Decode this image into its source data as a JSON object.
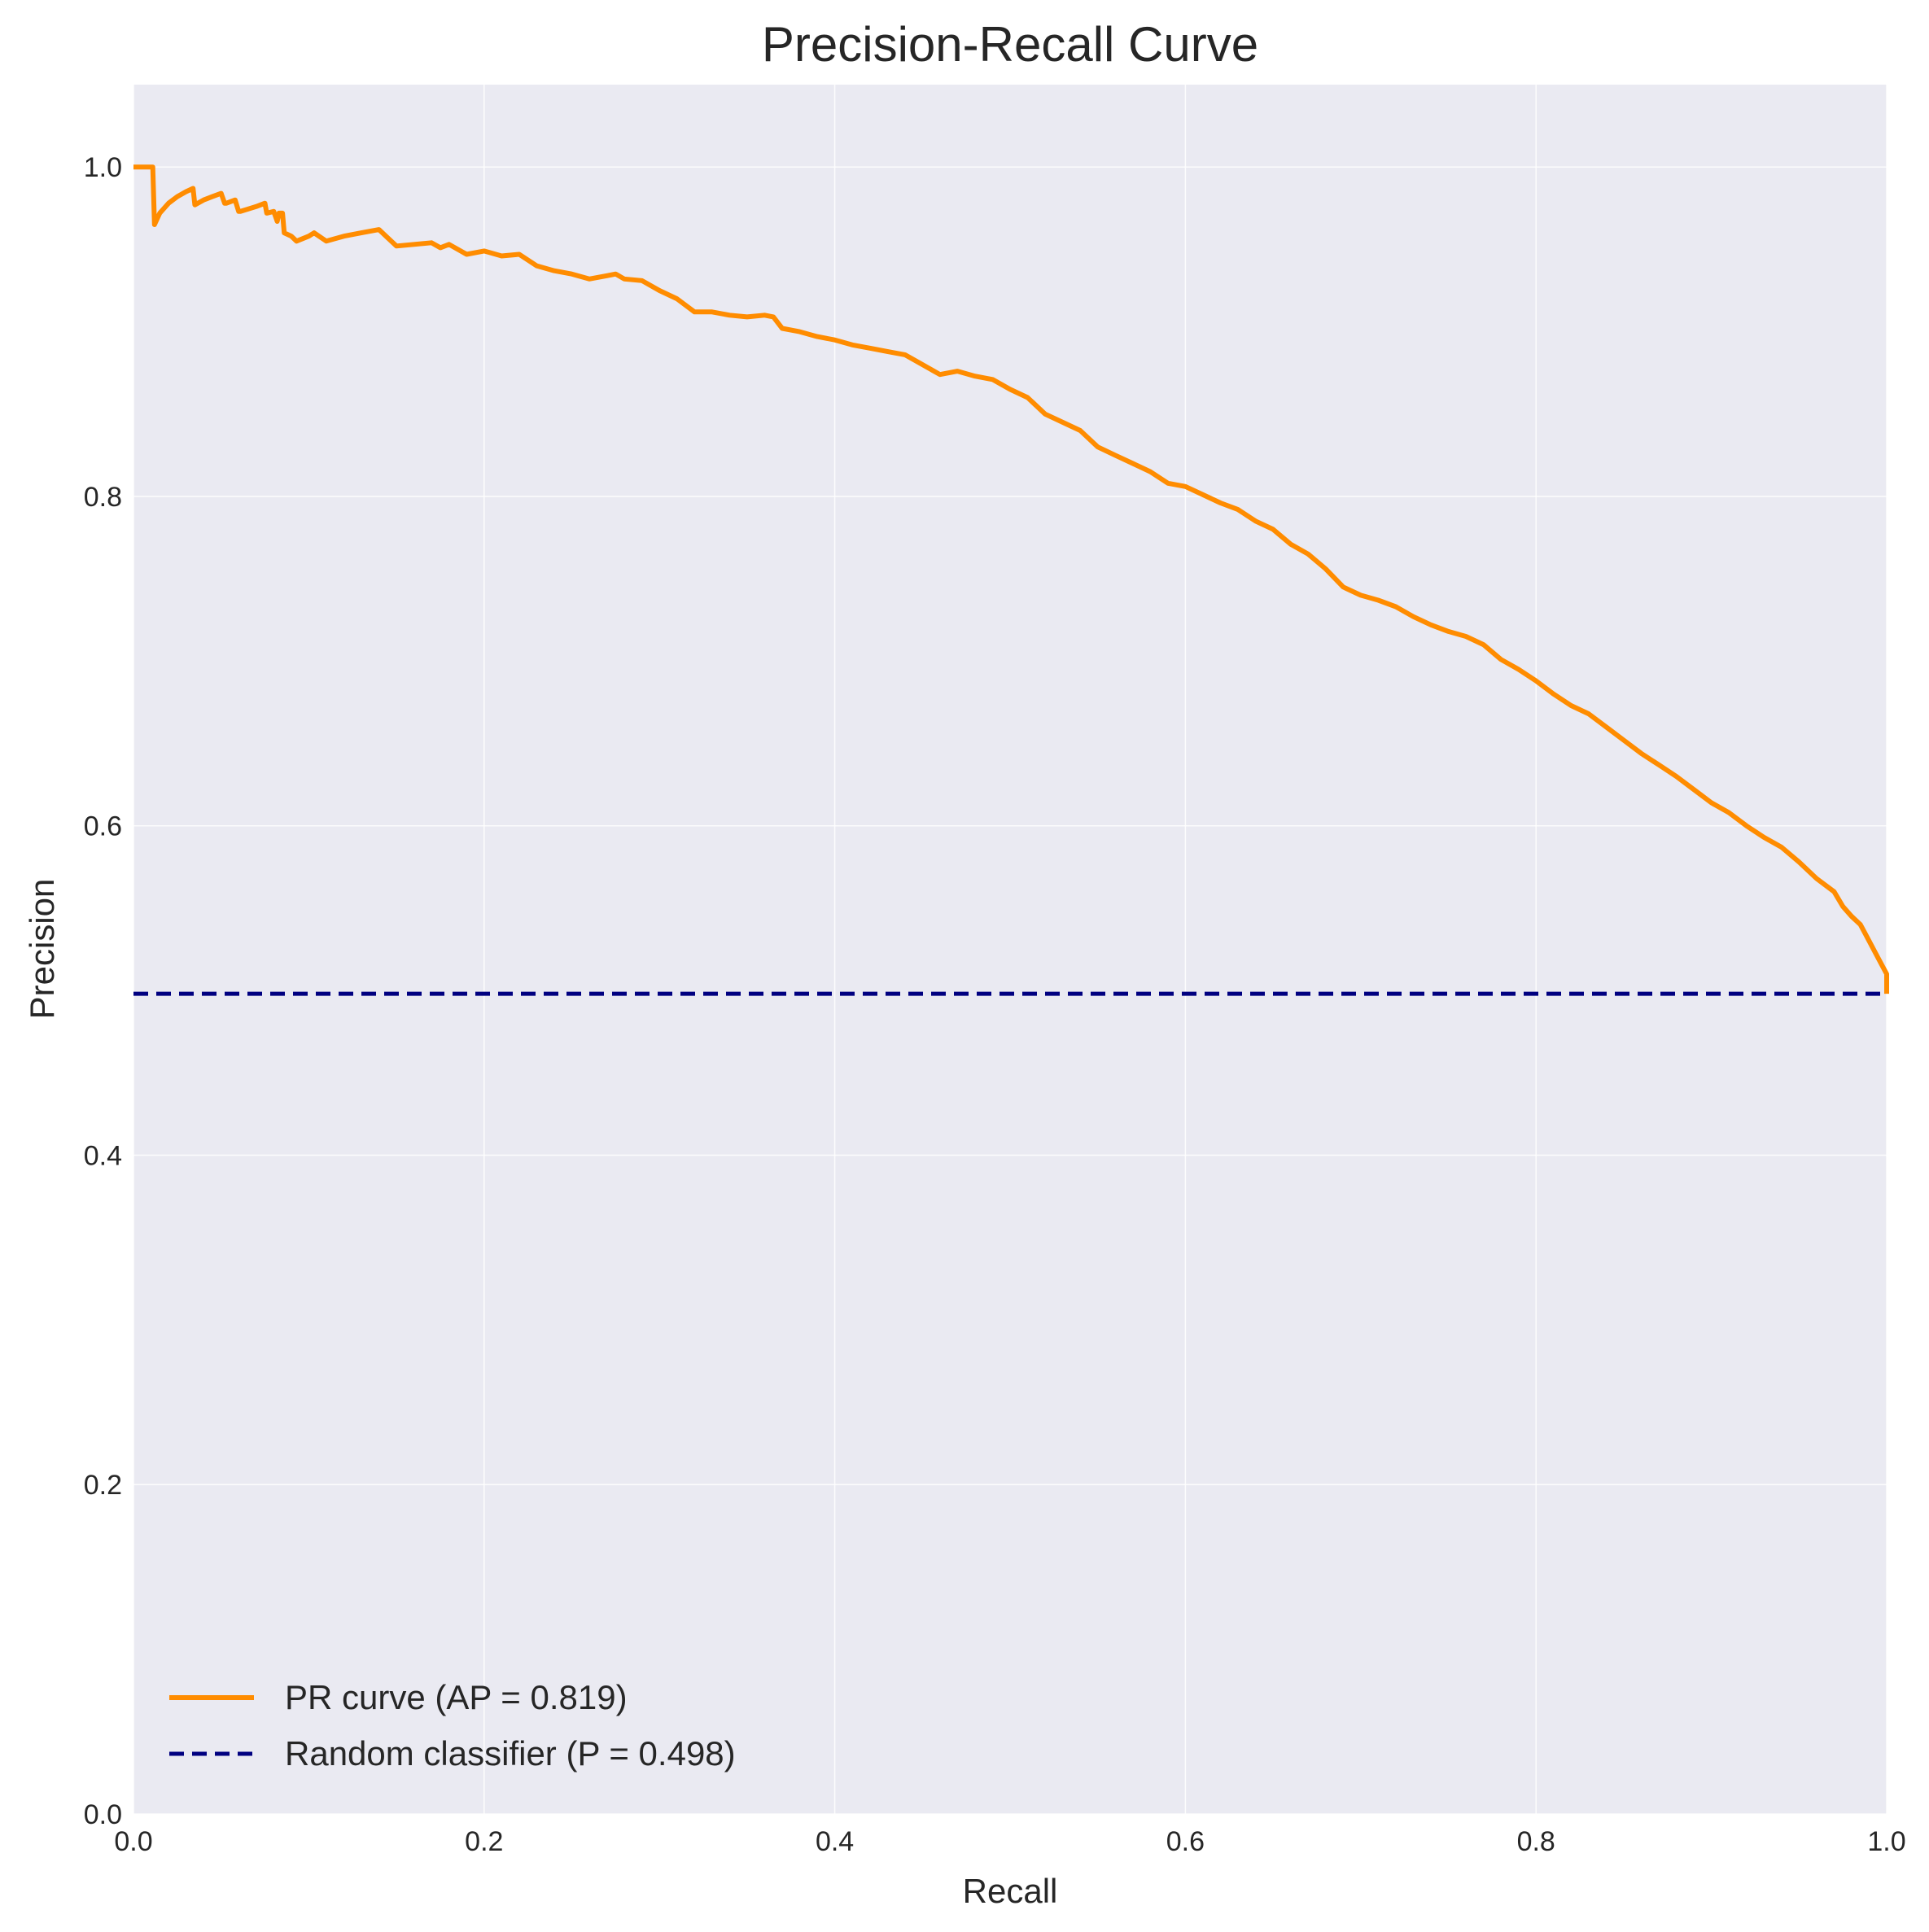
{
  "chart_data": {
    "type": "line",
    "title": "Precision-Recall Curve",
    "xlabel": "Recall",
    "ylabel": "Precision",
    "xlim": [
      0.0,
      1.0
    ],
    "ylim": [
      0.0,
      1.05
    ],
    "xticks": [
      "0.0",
      "0.2",
      "0.4",
      "0.6",
      "0.8",
      "1.0"
    ],
    "yticks": [
      "0.0",
      "0.2",
      "0.4",
      "0.6",
      "0.8",
      "1.0"
    ],
    "grid": true,
    "legend_position": "lower-left",
    "series": [
      {
        "name": "PR curve (AP = 0.819)",
        "color": "#ff8c00",
        "style": "solid",
        "x": [
          0.0,
          0.005,
          0.011,
          0.012,
          0.015,
          0.02,
          0.025,
          0.03,
          0.034,
          0.035,
          0.04,
          0.045,
          0.05,
          0.052,
          0.053,
          0.058,
          0.06,
          0.061,
          0.07,
          0.075,
          0.076,
          0.08,
          0.082,
          0.083,
          0.085,
          0.086,
          0.09,
          0.093,
          0.1,
          0.103,
          0.11,
          0.12,
          0.13,
          0.14,
          0.145,
          0.15,
          0.16,
          0.17,
          0.175,
          0.18,
          0.19,
          0.2,
          0.21,
          0.22,
          0.23,
          0.24,
          0.25,
          0.26,
          0.27,
          0.275,
          0.28,
          0.29,
          0.3,
          0.31,
          0.32,
          0.33,
          0.34,
          0.35,
          0.36,
          0.365,
          0.37,
          0.38,
          0.39,
          0.4,
          0.41,
          0.42,
          0.43,
          0.44,
          0.45,
          0.46,
          0.47,
          0.48,
          0.49,
          0.5,
          0.51,
          0.52,
          0.53,
          0.54,
          0.55,
          0.56,
          0.57,
          0.58,
          0.59,
          0.6,
          0.61,
          0.62,
          0.63,
          0.64,
          0.65,
          0.66,
          0.67,
          0.68,
          0.69,
          0.7,
          0.71,
          0.72,
          0.73,
          0.74,
          0.75,
          0.76,
          0.77,
          0.78,
          0.79,
          0.8,
          0.81,
          0.82,
          0.83,
          0.84,
          0.85,
          0.86,
          0.87,
          0.88,
          0.89,
          0.9,
          0.91,
          0.92,
          0.93,
          0.94,
          0.95,
          0.96,
          0.97,
          0.975,
          0.98,
          0.985,
          0.99,
          0.995,
          1.0,
          1.0
        ],
        "y": [
          1.0,
          1.0,
          1.0,
          0.965,
          0.972,
          0.978,
          0.982,
          0.985,
          0.987,
          0.977,
          0.98,
          0.982,
          0.984,
          0.978,
          0.978,
          0.98,
          0.973,
          0.973,
          0.976,
          0.978,
          0.972,
          0.973,
          0.967,
          0.972,
          0.972,
          0.96,
          0.958,
          0.955,
          0.958,
          0.96,
          0.955,
          0.958,
          0.96,
          0.962,
          0.957,
          0.952,
          0.953,
          0.954,
          0.951,
          0.953,
          0.947,
          0.949,
          0.946,
          0.947,
          0.94,
          0.937,
          0.935,
          0.932,
          0.934,
          0.935,
          0.932,
          0.931,
          0.925,
          0.92,
          0.912,
          0.912,
          0.91,
          0.909,
          0.91,
          0.909,
          0.902,
          0.9,
          0.897,
          0.895,
          0.892,
          0.89,
          0.888,
          0.886,
          0.88,
          0.874,
          0.876,
          0.873,
          0.871,
          0.865,
          0.86,
          0.85,
          0.845,
          0.84,
          0.83,
          0.825,
          0.82,
          0.815,
          0.808,
          0.806,
          0.801,
          0.796,
          0.792,
          0.785,
          0.78,
          0.771,
          0.765,
          0.756,
          0.745,
          0.74,
          0.737,
          0.733,
          0.727,
          0.722,
          0.718,
          0.715,
          0.71,
          0.701,
          0.695,
          0.688,
          0.68,
          0.673,
          0.668,
          0.66,
          0.652,
          0.644,
          0.637,
          0.63,
          0.622,
          0.614,
          0.608,
          0.6,
          0.593,
          0.587,
          0.578,
          0.568,
          0.56,
          0.551,
          0.545,
          0.54,
          0.53,
          0.52,
          0.51,
          0.498
        ]
      },
      {
        "name": "Random classifier (P = 0.498)",
        "color": "#000080",
        "style": "dashed",
        "x": [
          0.0,
          1.0
        ],
        "y": [
          0.498,
          0.498
        ]
      }
    ]
  }
}
